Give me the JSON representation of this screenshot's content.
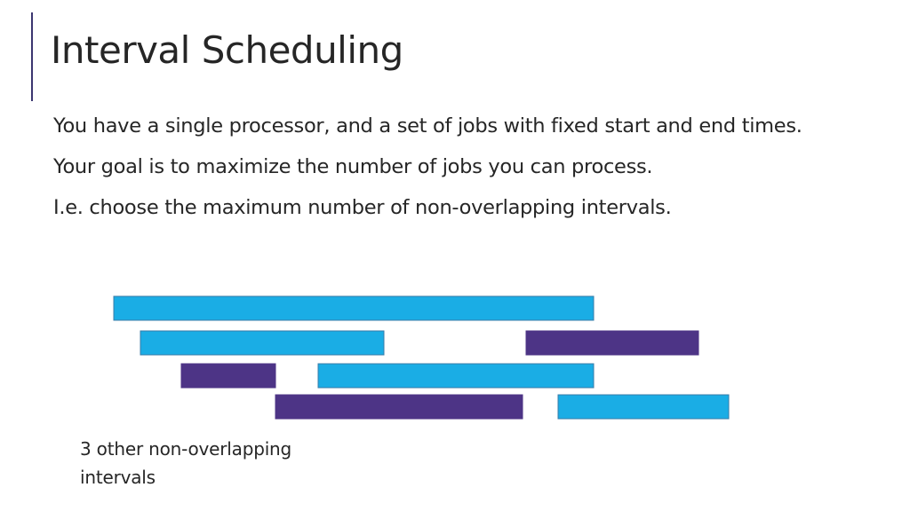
{
  "slide": {
    "title": "Interval Scheduling",
    "bullets": [
      "You have a single processor, and a set of jobs with fixed start and end times.",
      "Your goal is to maximize the number of jobs you can process.",
      "I.e. choose the maximum number of non-overlapping intervals."
    ],
    "caption": "3 other non-overlapping intervals"
  },
  "colors": {
    "unselected": "#1aade5",
    "selected": "#4d3486",
    "stroke": "#3a7ca8"
  },
  "intervals": [
    {
      "row": 0,
      "start": 0,
      "end": 270,
      "selected": false
    },
    {
      "row": 1,
      "start": 15,
      "end": 152,
      "selected": false
    },
    {
      "row": 1,
      "start": 232,
      "end": 329,
      "selected": true
    },
    {
      "row": 2,
      "start": 38,
      "end": 91,
      "selected": true
    },
    {
      "row": 2,
      "start": 115,
      "end": 270,
      "selected": false
    },
    {
      "row": 3,
      "start": 91,
      "end": 230,
      "selected": true
    },
    {
      "row": 3,
      "start": 250,
      "end": 346,
      "selected": false
    }
  ]
}
